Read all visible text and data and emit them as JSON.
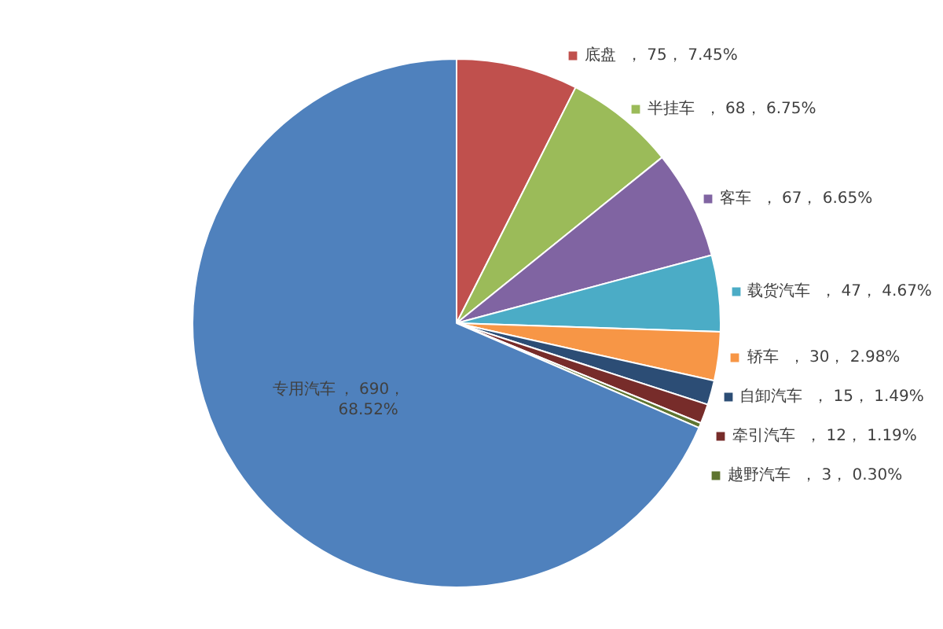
{
  "chart_data": {
    "type": "pie",
    "categories": [
      "底盘",
      "半挂车",
      "客车",
      "载货汽车",
      "轿车",
      "自卸汽车",
      "牵引汽车",
      "越野汽车",
      "专用汽车"
    ],
    "values": [
      75,
      68,
      67,
      47,
      30,
      15,
      12,
      3,
      690
    ],
    "colors": [
      "#c0504d",
      "#9bbb59",
      "#8064a2",
      "#4bacc6",
      "#f79646",
      "#2c4d75",
      "#772c2a",
      "#5f7530",
      "#4f81bd"
    ],
    "legend": "right",
    "value_labels": [
      "， 75， 7.45%",
      "， 68， 6.75%",
      "， 67， 6.65%",
      "， 47， 4.67%",
      "， 30， 2.98%",
      "， 15， 1.49%",
      "， 12， 1.19%",
      "， 3， 0.30%",
      "， 690，\n68.52%"
    ]
  }
}
